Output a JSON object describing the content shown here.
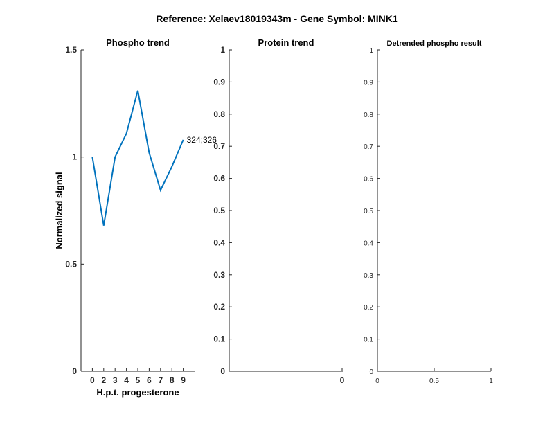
{
  "figure": {
    "suptitle": "Reference:  Xelaev18019343m - Gene Symbol:  MINK1"
  },
  "chart_data": [
    {
      "type": "line",
      "title": "Phospho trend",
      "xlabel": "H.p.t. progesterone",
      "ylabel": "Normalized signal",
      "categories": [
        "0",
        "2",
        "3",
        "4",
        "5",
        "6",
        "7",
        "8",
        "9"
      ],
      "ylim": [
        0,
        1.5
      ],
      "yticks": [
        "0",
        "0.5",
        "1",
        "1.5"
      ],
      "series": [
        {
          "name": "324;326",
          "values": [
            1.0,
            0.68,
            1.0,
            1.11,
            1.31,
            1.02,
            0.845,
            0.955,
            1.08
          ],
          "color": "#0072BD"
        }
      ],
      "grid": false
    },
    {
      "type": "line",
      "title": "Protein trend",
      "xlabel": "",
      "ylabel": "",
      "xticks": [
        "0"
      ],
      "ylim": [
        0,
        1
      ],
      "yticks": [
        "0",
        "0.1",
        "0.2",
        "0.3",
        "0.4",
        "0.5",
        "0.6",
        "0.7",
        "0.8",
        "0.9",
        "1"
      ],
      "series": [],
      "grid": false
    },
    {
      "type": "line",
      "title": "Detrended phospho result",
      "xlabel": "",
      "ylabel": "",
      "xlim": [
        0,
        1
      ],
      "xticks": [
        "0",
        "0.5",
        "1"
      ],
      "ylim": [
        0,
        1
      ],
      "yticks": [
        "0",
        "0.1",
        "0.2",
        "0.3",
        "0.4",
        "0.5",
        "0.6",
        "0.7",
        "0.8",
        "0.9",
        "1"
      ],
      "series": [],
      "grid": false
    }
  ]
}
